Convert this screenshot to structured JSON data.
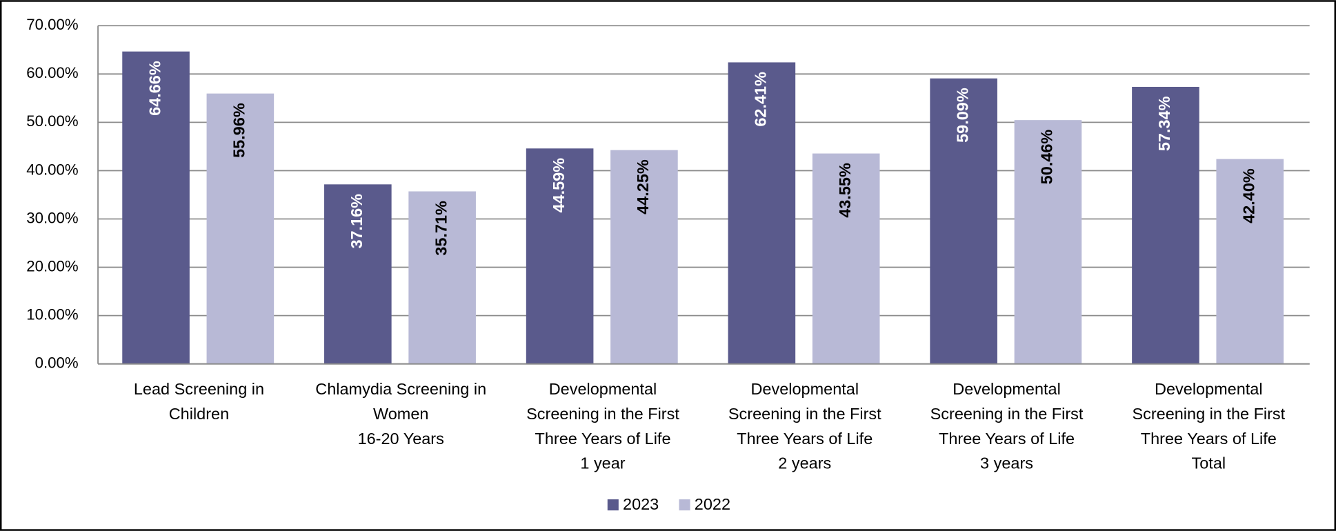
{
  "chart_data": {
    "type": "bar",
    "categories": [
      [
        "Lead Screening in",
        "Children"
      ],
      [
        "Chlamydia Screening in",
        "Women",
        "16-20 Years"
      ],
      [
        "Developmental",
        "Screening in the First",
        "Three Years of Life",
        "1 year"
      ],
      [
        "Developmental",
        "Screening in the First",
        "Three Years of Life",
        "2 years"
      ],
      [
        "Developmental",
        "Screening in the First",
        "Three Years of Life",
        "3 years"
      ],
      [
        "Developmental",
        "Screening in the First",
        "Three Years of Life",
        "Total"
      ]
    ],
    "series": [
      {
        "name": "2023",
        "color": "#5a5a8c",
        "label_color": "#ffffff",
        "values": [
          64.66,
          37.16,
          44.59,
          62.41,
          59.09,
          57.34
        ],
        "value_labels": [
          "64.66%",
          "37.16%",
          "44.59%",
          "62.41%",
          "59.09%",
          "57.34%"
        ]
      },
      {
        "name": "2022",
        "color": "#b8b9d6",
        "label_color": "#000000",
        "values": [
          55.96,
          35.71,
          44.25,
          43.55,
          50.46,
          42.4
        ],
        "value_labels": [
          "55.96%",
          "35.71%",
          "44.25%",
          "43.55%",
          "50.46%",
          "42.40%"
        ]
      }
    ],
    "ylim": [
      0,
      70
    ],
    "yticks": [
      {
        "value": 0,
        "label": "0.00%"
      },
      {
        "value": 10,
        "label": "10.00%"
      },
      {
        "value": 20,
        "label": "20.00%"
      },
      {
        "value": 30,
        "label": "30.00%"
      },
      {
        "value": 40,
        "label": "40.00%"
      },
      {
        "value": 50,
        "label": "50.00%"
      },
      {
        "value": 60,
        "label": "60.00%"
      },
      {
        "value": 70,
        "label": "70.00%"
      }
    ],
    "grid": true,
    "legend": "bottom"
  }
}
